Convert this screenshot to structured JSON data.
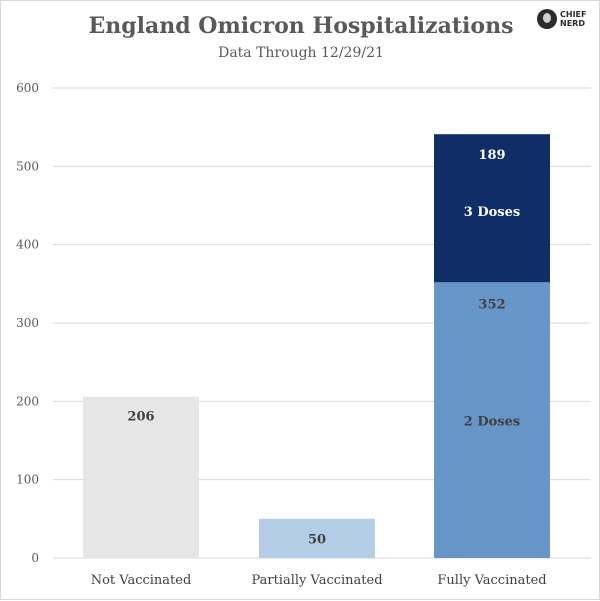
{
  "chart_data": {
    "type": "bar",
    "title": "England Omicron Hospitalizations",
    "subtitle": "Data Through 12/29/21",
    "categories": [
      "Not Vaccinated",
      "Partially Vaccinated",
      "Fully Vaccinated"
    ],
    "ylim": [
      0,
      600
    ],
    "yticks": [
      0,
      100,
      200,
      300,
      400,
      500,
      600
    ],
    "grid": true,
    "stacked": true,
    "series": [
      {
        "values": [
          206,
          50,
          352
        ],
        "colors": [
          "#e6e6e6",
          "#b4cde6",
          "#6895c8"
        ],
        "value_labels": [
          "206",
          "50",
          "352"
        ],
        "segment_labels": [
          null,
          null,
          "2 Doses"
        ],
        "label_colors": [
          "#404040",
          "#404040",
          "#404040"
        ]
      },
      {
        "values": [
          0,
          0,
          189
        ],
        "colors": [
          "#0f2d66",
          "#0f2d66",
          "#0f2d66"
        ],
        "value_labels": [
          null,
          null,
          "189"
        ],
        "segment_labels": [
          null,
          null,
          "3 Doses"
        ],
        "label_colors": [
          "#ffffff",
          "#ffffff",
          "#ffffff"
        ]
      }
    ]
  },
  "brand": {
    "text": "CHIEF NERD",
    "logo_icon": "chief-nerd-logo-icon"
  }
}
